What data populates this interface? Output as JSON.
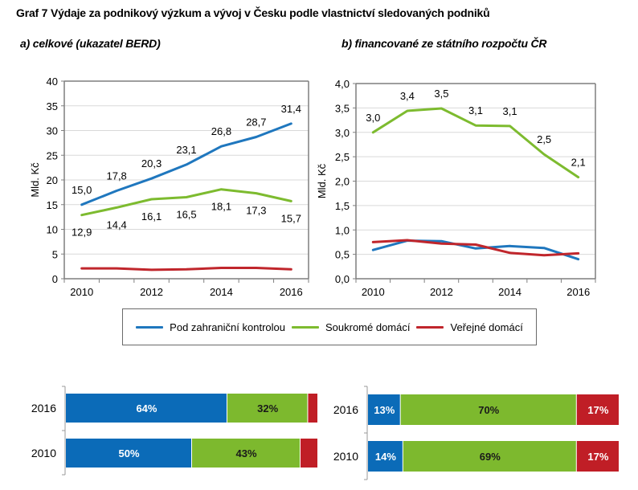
{
  "title": "Graf 7 Výdaje za podnikový výzkum a vývoj v Česku podle vlastnictví sledovaných podniků",
  "colors": {
    "foreign": "#1F77BE",
    "private": "#7DBB2F",
    "public": "#C0262C",
    "bar_blue": "#0B6BB8",
    "bar_green": "#7DB92E",
    "bar_red": "#C01E26",
    "grid": "#d9d9d9",
    "axis": "#7f7f7f"
  },
  "legend": [
    {
      "key": "foreign",
      "label": "Pod zahraniční kontrolou"
    },
    {
      "key": "private",
      "label": "Soukromé domácí"
    },
    {
      "key": "public",
      "label": "Veřejné domácí"
    }
  ],
  "chart_data": [
    {
      "id": "a",
      "type": "line",
      "title": "a) celkové (ukazatel BERD)",
      "xlabel": "",
      "ylabel": "Mld. Kč",
      "x": [
        2010,
        2011,
        2012,
        2013,
        2014,
        2015,
        2016
      ],
      "x_tick_labels": [
        "2010",
        "2012",
        "2014",
        "2016"
      ],
      "ylim": [
        0,
        40
      ],
      "y_ticks": [
        0,
        5,
        10,
        15,
        20,
        25,
        30,
        35,
        40
      ],
      "y_tick_labels": [
        "0",
        "5",
        "10",
        "15",
        "20",
        "25",
        "30",
        "35",
        "40"
      ],
      "grid": true,
      "series": [
        {
          "name": "Pod zahraniční kontrolou",
          "key": "foreign",
          "values": [
            15.0,
            17.8,
            20.3,
            23.1,
            26.8,
            28.7,
            31.4
          ],
          "labels": [
            "15,0",
            "17,8",
            "20,3",
            "23,1",
            "26,8",
            "28,7",
            "31,4"
          ],
          "label_pos": "above"
        },
        {
          "name": "Soukromé domácí",
          "key": "private",
          "values": [
            12.9,
            14.4,
            16.1,
            16.5,
            18.1,
            17.3,
            15.7
          ],
          "labels": [
            "12,9",
            "14,4",
            "16,1",
            "16,5",
            "18,1",
            "17,3",
            "15,7"
          ],
          "label_pos": "below"
        },
        {
          "name": "Veřejné domácí",
          "key": "public",
          "values": [
            2.1,
            2.1,
            1.8,
            1.9,
            2.2,
            2.2,
            1.9
          ],
          "labels": [],
          "label_pos": "none"
        }
      ]
    },
    {
      "id": "b",
      "type": "line",
      "title": "b) financované ze státního rozpočtu ČR",
      "xlabel": "",
      "ylabel": "Mld. Kč",
      "x": [
        2010,
        2011,
        2012,
        2013,
        2014,
        2015,
        2016
      ],
      "x_tick_labels": [
        "2010",
        "2012",
        "2014",
        "2016"
      ],
      "ylim": [
        0,
        4
      ],
      "y_ticks": [
        0,
        0.5,
        1,
        1.5,
        2,
        2.5,
        3,
        3.5,
        4
      ],
      "y_tick_labels": [
        "0,0",
        "0,5",
        "1,0",
        "1,5",
        "2,0",
        "2,5",
        "3,0",
        "3,5",
        "4,0"
      ],
      "grid": true,
      "series": [
        {
          "name": "Pod zahraniční kontrolou",
          "key": "foreign",
          "values": [
            0.59,
            0.78,
            0.77,
            0.62,
            0.67,
            0.63,
            0.4
          ],
          "labels": [],
          "label_pos": "none"
        },
        {
          "name": "Soukromé domácí",
          "key": "private",
          "values": [
            3.0,
            3.44,
            3.49,
            3.14,
            3.13,
            2.55,
            2.08
          ],
          "labels": [
            "3,0",
            "3,4",
            "3,5",
            "3,1",
            "3,1",
            "2,5",
            "2,1"
          ],
          "label_pos": "above"
        },
        {
          "name": "Veřejné domácí",
          "key": "public",
          "values": [
            0.75,
            0.79,
            0.72,
            0.7,
            0.53,
            0.48,
            0.52
          ],
          "labels": [],
          "label_pos": "none"
        }
      ]
    },
    {
      "id": "a-share",
      "type": "bar",
      "orientation": "horizontal-stacked-100",
      "categories": [
        "2016",
        "2010"
      ],
      "series": [
        {
          "name": "Pod zahraniční kontrolou",
          "key": "foreign",
          "values": [
            64,
            50
          ],
          "labels": [
            "64%",
            "50%"
          ]
        },
        {
          "name": "Soukromé domácí",
          "key": "private",
          "values": [
            32,
            43
          ],
          "labels": [
            "32%",
            "43%"
          ]
        },
        {
          "name": "Veřejné domácí",
          "key": "public",
          "values": [
            4,
            7
          ],
          "labels": [
            "",
            ""
          ]
        }
      ]
    },
    {
      "id": "b-share",
      "type": "bar",
      "orientation": "horizontal-stacked-100",
      "categories": [
        "2016",
        "2010"
      ],
      "series": [
        {
          "name": "Pod zahraniční kontrolou",
          "key": "foreign",
          "values": [
            13,
            14
          ],
          "labels": [
            "13%",
            "14%"
          ]
        },
        {
          "name": "Soukromé domácí",
          "key": "private",
          "values": [
            70,
            69
          ],
          "labels": [
            "70%",
            "69%"
          ]
        },
        {
          "name": "Veřejné domácí",
          "key": "public",
          "values": [
            17,
            17
          ],
          "labels": [
            "17%",
            "17%"
          ]
        }
      ]
    }
  ]
}
